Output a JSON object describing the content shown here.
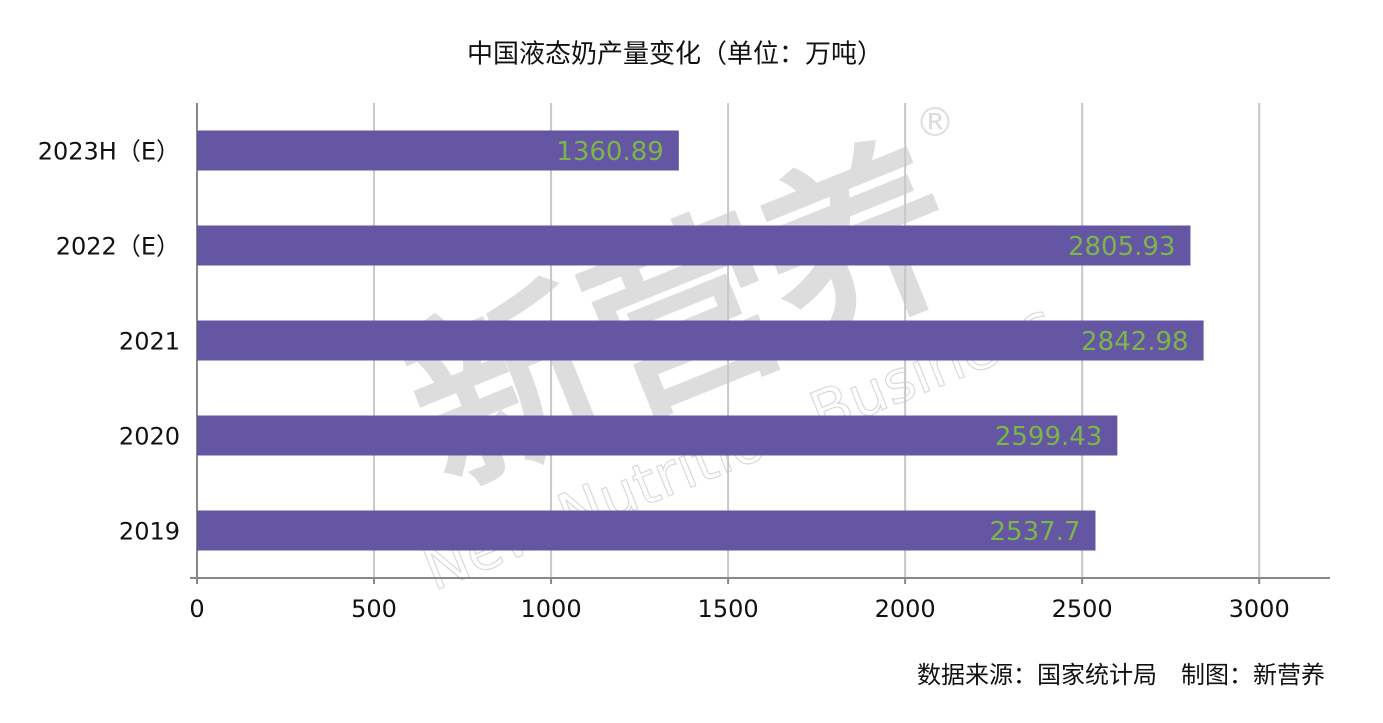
{
  "chart_data": {
    "type": "bar",
    "orientation": "horizontal",
    "title": "中国液态奶产量变化（单位：万吨）",
    "categories": [
      "2023H（E）",
      "2022（E）",
      "2021",
      "2020",
      "2019"
    ],
    "values": [
      1360.89,
      2805.93,
      2842.98,
      2599.43,
      2537.7
    ],
    "color": "#6556a3",
    "label_color": "#7ab648",
    "xlim": [
      0,
      3200
    ],
    "xticks": [
      0,
      500,
      1000,
      1500,
      2000,
      2500,
      3000
    ],
    "grid": true,
    "source": "数据来源：国家统计局　制图：新营养",
    "watermark": {
      "main": "新营养",
      "sub": "New Nutrition Business",
      "mark": "®"
    }
  }
}
